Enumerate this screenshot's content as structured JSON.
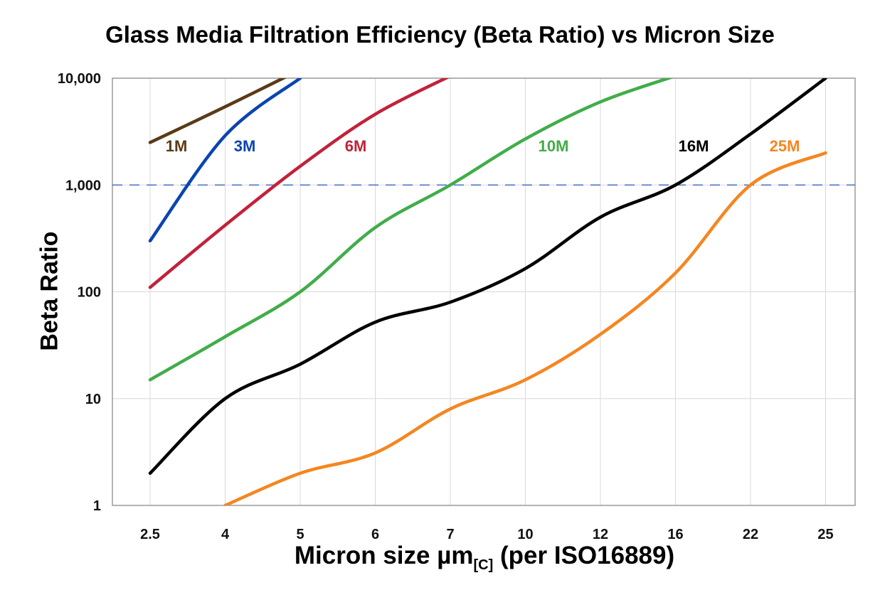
{
  "chart_data": {
    "type": "line",
    "title": "Glass Media Filtration Efficiency (Beta Ratio) vs Micron Size",
    "xlabel": "Micron size µm",
    "xlabel_subscript": "[C]",
    "xlabel_suffix": "(per ISO16889)",
    "ylabel": "Beta Ratio",
    "yscale": "log",
    "ylim": [
      1,
      10000
    ],
    "yticks": [
      "1",
      "10",
      "100",
      "1,000",
      "10,000"
    ],
    "categories": [
      "2.5",
      "4",
      "5",
      "6",
      "7",
      "10",
      "12",
      "16",
      "22",
      "25"
    ],
    "grid": true,
    "reference_line": {
      "y": 1000,
      "style": "dashed",
      "color": "#4472c4"
    },
    "series": [
      {
        "name": "1M",
        "color": "#5b3a17",
        "values": [
          2500,
          5400,
          12000,
          null,
          null,
          null,
          null,
          null,
          null,
          null
        ]
      },
      {
        "name": "3M",
        "color": "#0a45b0",
        "values": [
          300,
          2900,
          10000,
          null,
          null,
          null,
          null,
          null,
          null,
          null
        ]
      },
      {
        "name": "6M",
        "color": "#c1223b",
        "values": [
          110,
          420,
          1500,
          4600,
          10500,
          null,
          null,
          null,
          null,
          null
        ]
      },
      {
        "name": "10M",
        "color": "#41ad49",
        "values": [
          15,
          38,
          100,
          400,
          1000,
          2700,
          6000,
          10500,
          null,
          null
        ]
      },
      {
        "name": "16M",
        "color": "#000000",
        "values": [
          2,
          10,
          21,
          52,
          80,
          165,
          500,
          1000,
          3000,
          10000
        ]
      },
      {
        "name": "25M",
        "color": "#f58620",
        "values": [
          null,
          1,
          2,
          3.1,
          8,
          15,
          40,
          150,
          1000,
          2000
        ]
      }
    ]
  }
}
